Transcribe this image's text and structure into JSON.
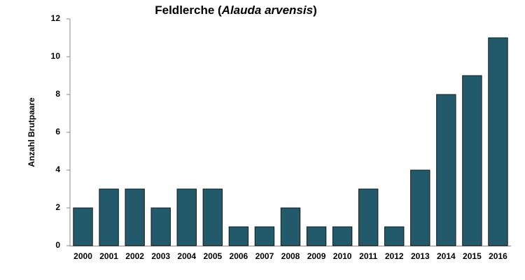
{
  "chart_data": {
    "type": "bar",
    "title": [
      "Feldlerche (",
      "Alauda arvensis",
      ")"
    ],
    "y_label": "Anzahl Brutpaare",
    "categories": [
      "2000",
      "2001",
      "2002",
      "2003",
      "2004",
      "2005",
      "2006",
      "2007",
      "2008",
      "2009",
      "2010",
      "2011",
      "2012",
      "2013",
      "2014",
      "2015",
      "2016"
    ],
    "values": [
      2,
      3,
      3,
      2,
      3,
      3,
      1,
      1,
      2,
      1,
      1,
      3,
      1,
      4,
      8,
      9,
      11
    ],
    "color": "#225a6b",
    "ylim": [
      0,
      12
    ],
    "yticks": [
      0,
      2,
      4,
      6,
      8,
      10,
      12
    ],
    "grid": false
  }
}
